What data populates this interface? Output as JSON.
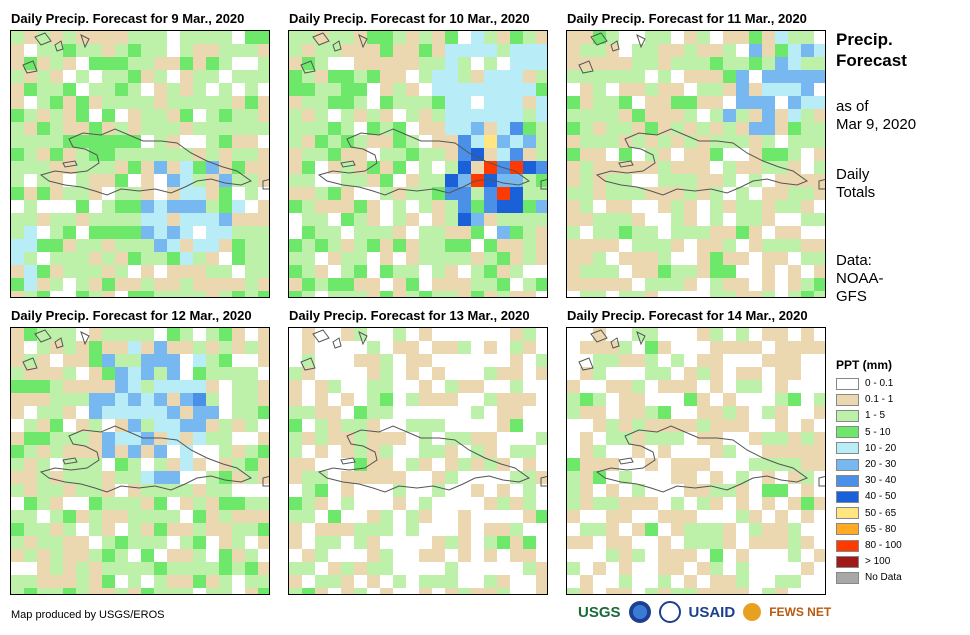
{
  "panels": [
    {
      "title": "Daily Precip. Forecast for 9 Mar., 2020",
      "day": 0
    },
    {
      "title": "Daily Precip. Forecast for 10 Mar., 2020",
      "day": 1
    },
    {
      "title": "Daily Precip. Forecast for 11 Mar., 2020",
      "day": 2
    },
    {
      "title": "Daily Precip. Forecast for 12 Mar., 2020",
      "day": 3
    },
    {
      "title": "Daily Precip. Forecast for 13 Mar., 2020",
      "day": 4
    },
    {
      "title": "Daily Precip. Forecast for 14 Mar., 2020",
      "day": 5
    }
  ],
  "side": {
    "heading_line1": "Precip.",
    "heading_line2": "Forecast",
    "asof_line1": "as of",
    "asof_line2": "Mar 9, 2020",
    "daily_line1": "Daily",
    "daily_line2": "Totals",
    "data_line1": "Data:",
    "data_line2": "NOAA-",
    "data_line3": "GFS"
  },
  "legend": {
    "title": "PPT (mm)",
    "items": [
      {
        "label": "0 - 0.1",
        "color": "#ffffff"
      },
      {
        "label": "0.1 - 1",
        "color": "#ecd8b0"
      },
      {
        "label": "1 - 5",
        "color": "#bdf0a8"
      },
      {
        "label": "5 - 10",
        "color": "#6ee86a"
      },
      {
        "label": "10 - 20",
        "color": "#b8ecf6"
      },
      {
        "label": "20 - 30",
        "color": "#78b8f0"
      },
      {
        "label": "30 - 40",
        "color": "#4a90e8"
      },
      {
        "label": "40 - 50",
        "color": "#1a60d8"
      },
      {
        "label": "50 - 65",
        "color": "#ffe680"
      },
      {
        "label": "65 - 80",
        "color": "#ffaa22"
      },
      {
        "label": "80 - 100",
        "color": "#ff3a00"
      },
      {
        "label": "> 100",
        "color": "#a01818"
      },
      {
        "label": "No Data",
        "color": "#a8a8a8"
      }
    ]
  },
  "footer": {
    "credit": "Map produced by USGS/EROS",
    "logos": [
      "USGS",
      "NOAA",
      "USAID",
      "FEWS NET"
    ]
  }
}
